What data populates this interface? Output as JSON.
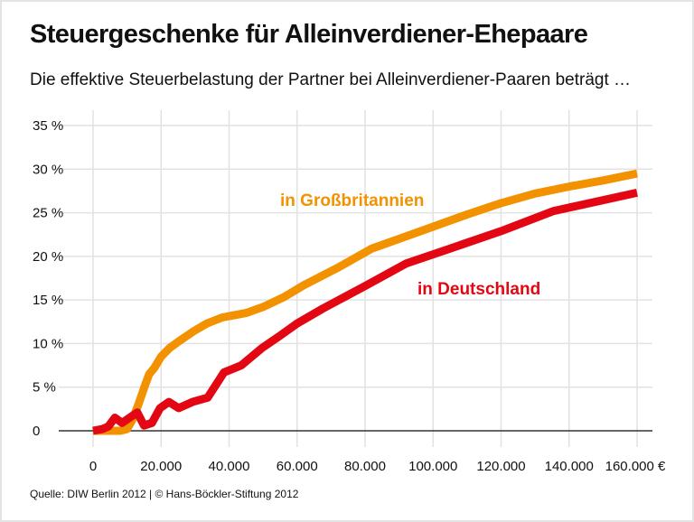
{
  "title": "Steuergeschenke für Alleinverdiener-Ehepaare",
  "subtitle": "Die effektive Steuerbelastung der Partner bei Alleinverdiener-Paaren beträgt …",
  "source": "Quelle: DIW Berlin 2012 | © Hans-Böckler-Stiftung 2012",
  "chart_data": {
    "type": "line",
    "title": "Steuergeschenke für Alleinverdiener-Ehepaare",
    "xlabel": "",
    "ylabel": "",
    "xlim": [
      0,
      160000
    ],
    "ylim": [
      0,
      35
    ],
    "grid": true,
    "x_ticks": [
      0,
      20000,
      40000,
      60000,
      80000,
      100000,
      120000,
      140000,
      160000
    ],
    "x_tick_labels": [
      "0",
      "20.000",
      "40.000",
      "60.000",
      "80.000",
      "100.000",
      "120.000",
      "140.000",
      "160.000 €"
    ],
    "y_ticks": [
      0,
      5,
      10,
      15,
      20,
      25,
      30,
      35
    ],
    "y_tick_labels": [
      "0",
      "5 %",
      "10 %",
      "15 %",
      "20 %",
      "25 %",
      "30 %",
      "35 %"
    ],
    "series": [
      {
        "name": "in Großbritannien",
        "color": "#f39200",
        "x": [
          0,
          4000,
          8000,
          10000,
          11500,
          13500,
          15000,
          16500,
          18000,
          20000,
          22500,
          25000,
          29500,
          33500,
          38000,
          45000,
          50000,
          56000,
          62000,
          72000,
          82000,
          90000,
          100000,
          110000,
          120000,
          130000,
          140000,
          150000,
          160000
        ],
        "y": [
          0,
          0,
          0,
          0.2,
          1.2,
          3.2,
          4.9,
          6.5,
          7.2,
          8.5,
          9.5,
          10.2,
          11.4,
          12.3,
          13.0,
          13.5,
          14.2,
          15.3,
          16.7,
          18.7,
          20.9,
          22.0,
          23.4,
          24.8,
          26.1,
          27.2,
          28.0,
          28.7,
          29.5
        ]
      },
      {
        "name": "in Deutschland",
        "color": "#e30613",
        "x": [
          0,
          2700,
          4500,
          6400,
          8500,
          13000,
          15000,
          17300,
          19700,
          22300,
          25200,
          29200,
          33700,
          38500,
          43600,
          49700,
          55000,
          60000,
          67500,
          80000,
          92200,
          105000,
          120000,
          135500,
          160000
        ],
        "y": [
          0,
          0.2,
          0.5,
          1.5,
          0.9,
          2.1,
          0.6,
          0.9,
          2.6,
          3.3,
          2.6,
          3.3,
          3.8,
          6.7,
          7.5,
          9.5,
          10.9,
          12.3,
          14.0,
          16.6,
          19.2,
          20.9,
          22.9,
          25.2,
          27.3
        ]
      }
    ]
  }
}
